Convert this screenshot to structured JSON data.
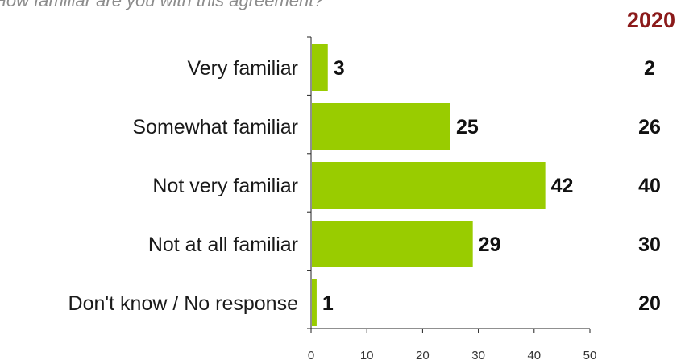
{
  "question": "How familiar are you with this agreement?",
  "comparison_header": "2020",
  "colors": {
    "bar": "#99cc00",
    "header": "#8b1a1a"
  },
  "chart_data": {
    "type": "bar",
    "orientation": "horizontal",
    "categories": [
      "Very familiar",
      "Somewhat familiar",
      "Not very familiar",
      "Not at all familiar",
      "Don't know / No response"
    ],
    "values": [
      3,
      25,
      42,
      29,
      1
    ],
    "comparison_values": [
      2,
      26,
      40,
      30,
      20
    ],
    "xlim": [
      0,
      50
    ],
    "xticks": [
      0,
      10,
      20,
      30,
      40,
      50
    ],
    "grid": false
  }
}
